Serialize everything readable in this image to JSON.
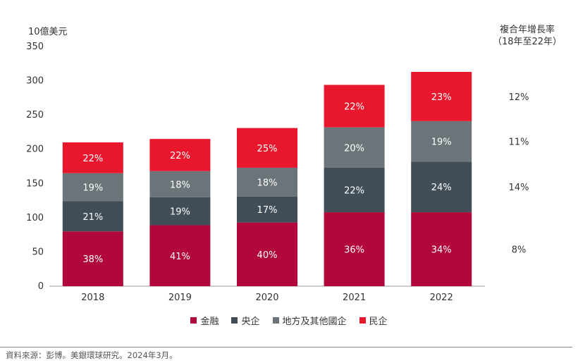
{
  "chart_data": {
    "type": "bar",
    "stacked": true,
    "unit_label": "10億美元",
    "categories": [
      "2018",
      "2019",
      "2020",
      "2021",
      "2022"
    ],
    "ylim": [
      0,
      350
    ],
    "yticks": [
      0,
      50,
      100,
      150,
      200,
      250,
      300,
      350
    ],
    "grid": false,
    "series": [
      {
        "name": "金融",
        "color": "#b1073a",
        "values": [
          80,
          89,
          93,
          108,
          108
        ],
        "labels": [
          "38%",
          "41%",
          "40%",
          "36%",
          "34%"
        ]
      },
      {
        "name": "央企",
        "color": "#414e58",
        "values": [
          44,
          41,
          38,
          65,
          74
        ],
        "labels": [
          "21%",
          "19%",
          "17%",
          "22%",
          "24%"
        ]
      },
      {
        "name": "地方及其他國企",
        "color": "#6a7479",
        "values": [
          41,
          38,
          42,
          59,
          59
        ],
        "labels": [
          "19%",
          "18%",
          "18%",
          "20%",
          "19%"
        ]
      },
      {
        "name": "民企",
        "color": "#e8172d",
        "values": [
          45,
          47,
          58,
          62,
          72
        ],
        "labels": [
          "22%",
          "22%",
          "25%",
          "22%",
          "23%"
        ]
      }
    ],
    "cagr": {
      "title_line1": "複合年增長率",
      "title_line2": "（18年至22年）",
      "values": [
        "8%",
        "14%",
        "11%",
        "12%"
      ]
    },
    "legend_position": "bottom-center"
  },
  "source": "資料來源：彭博。美銀環球研究。2024年3月。"
}
